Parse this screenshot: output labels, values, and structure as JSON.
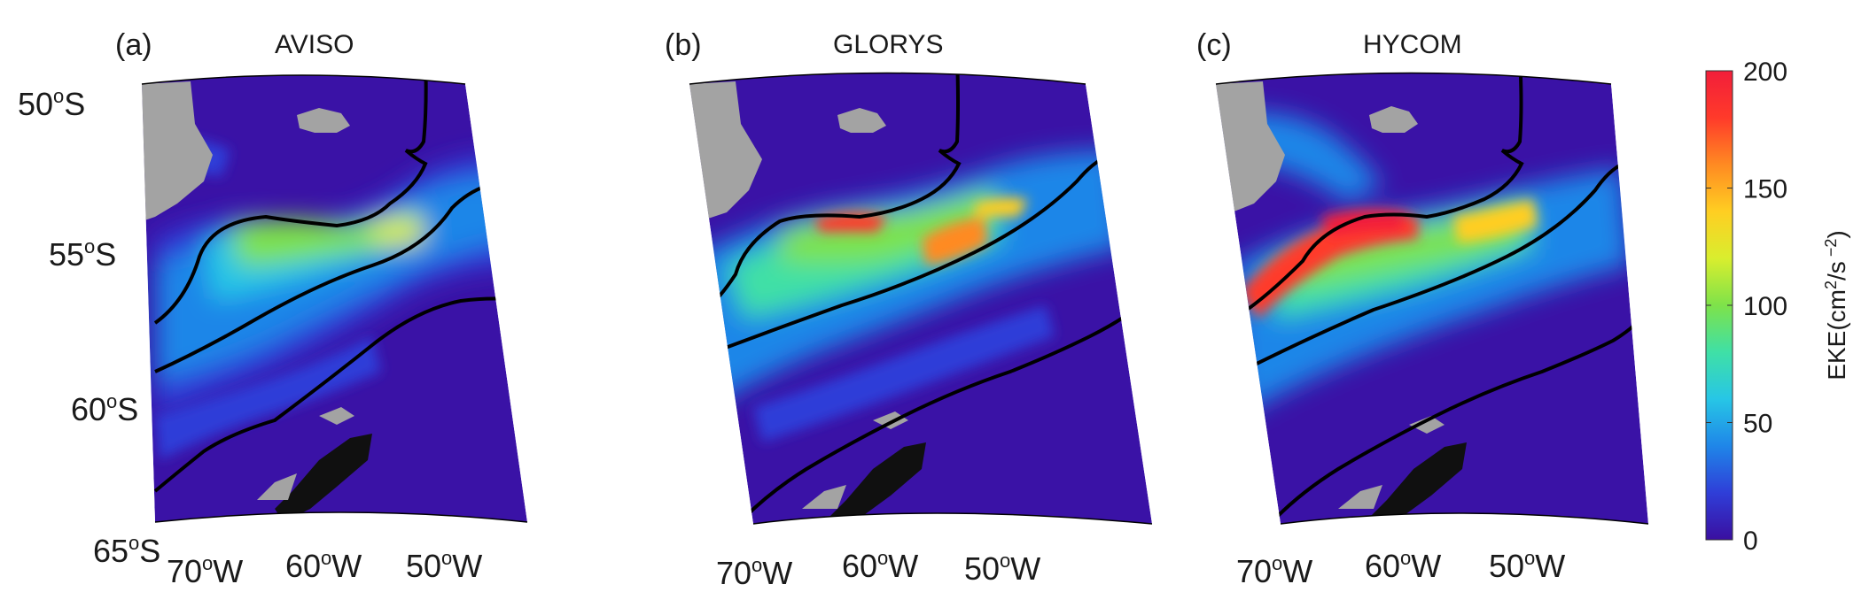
{
  "panels": [
    {
      "id": "a",
      "letter": "(a)",
      "title": "AVISO"
    },
    {
      "id": "b",
      "letter": "(b)",
      "title": "GLORYS"
    },
    {
      "id": "c",
      "letter": "(c)",
      "title": "HYCOM"
    }
  ],
  "latitude_labels": [
    {
      "deg": "50",
      "sup": "o",
      "hem": "S"
    },
    {
      "deg": "55",
      "sup": "o",
      "hem": "S"
    },
    {
      "deg": "60",
      "sup": "o",
      "hem": "S"
    },
    {
      "deg": "65",
      "sup": "o",
      "hem": "S"
    }
  ],
  "longitude_labels": [
    {
      "deg": "70",
      "sup": "o",
      "hem": "W"
    },
    {
      "deg": "60",
      "sup": "o",
      "hem": "W"
    },
    {
      "deg": "50",
      "sup": "o",
      "hem": "W"
    }
  ],
  "colorbar": {
    "label_prefix": "EKE(cm",
    "label_sup1": "2",
    "label_mid": "/s",
    "label_sup2": " −2",
    "label_suffix": ")",
    "ticks": [
      "0",
      "50",
      "100",
      "150",
      "200"
    ],
    "min": 0,
    "max": 200,
    "stops": [
      "#3a0fa0",
      "#2f3ed8",
      "#1f86e8",
      "#27c6e6",
      "#3fe0a6",
      "#7ee24a",
      "#d9ee2e",
      "#ffce22",
      "#ff8a22",
      "#ff3a2a",
      "#f21e3a"
    ]
  },
  "colors": {
    "ocean_low": "#3a12a6",
    "land": "#a3a3a3",
    "ice": "#101010",
    "front_line": "#000000"
  }
}
